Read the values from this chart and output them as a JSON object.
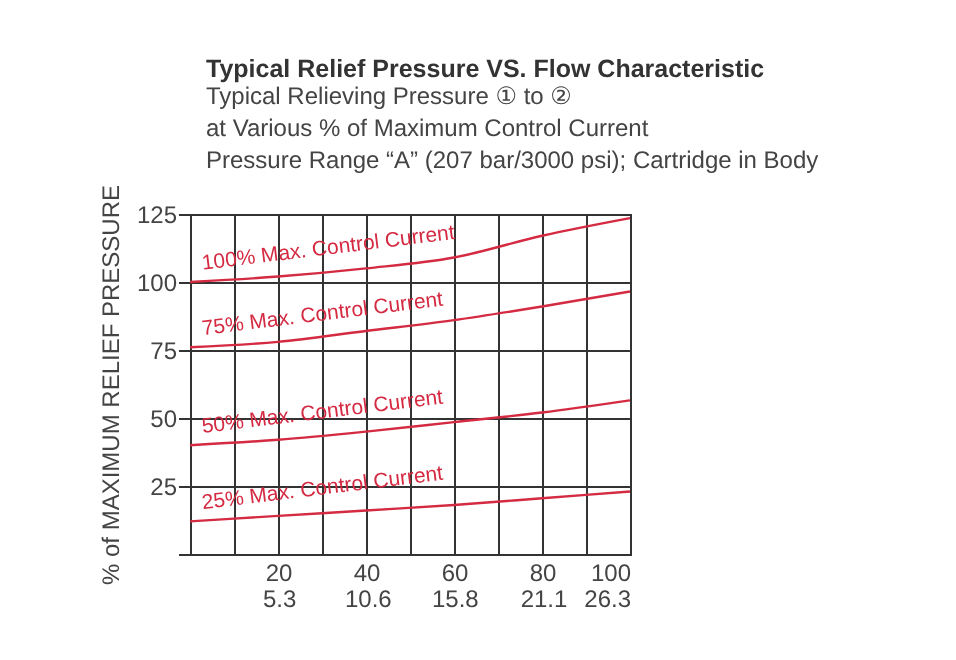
{
  "chart_data": {
    "type": "line",
    "title": "Typical Relief Pressure VS. Flow Characteristic",
    "subtitle": "Typical Relieving Pressure ① to ②\nat Various % of Maximum Control Current\nPressure Range “A” (207 bar/3000 psi); Cartridge in Body",
    "ylabel": "% of MAXIMUM RELIEF PRESSURE",
    "x": [
      0,
      20,
      40,
      60,
      80,
      100
    ],
    "series": [
      {
        "name": "100% Max. Control Current",
        "color": "#d42a42",
        "values": [
          100,
          102,
          105,
          109,
          117,
          123.5
        ]
      },
      {
        "name": "75% Max. Control Current",
        "color": "#d42a42",
        "values": [
          76,
          78,
          82,
          86,
          91,
          96.5
        ]
      },
      {
        "name": "50% Max. Control Current",
        "color": "#d42a42",
        "values": [
          40,
          42,
          45,
          48.5,
          52,
          56.5
        ]
      },
      {
        "name": "25% Max. Control Current",
        "color": "#d42a42",
        "values": [
          12,
          14,
          16,
          18,
          20.5,
          23
        ]
      }
    ],
    "xlim": [
      0,
      100
    ],
    "xticks": [
      {
        "value": 0,
        "label": null
      },
      {
        "value": 10,
        "label": null
      },
      20,
      {
        "value": 30,
        "label": null
      },
      40,
      {
        "value": 50,
        "label": null
      },
      60,
      {
        "value": 70,
        "label": null
      },
      80,
      {
        "value": 90,
        "label": null
      },
      100
    ],
    "x2lim": [
      0,
      26.3
    ],
    "x2ticks": [
      5.3,
      10.6,
      15.8,
      21.1,
      26.3
    ],
    "ylim": [
      0,
      125
    ],
    "yticks": [
      {
        "value": 0,
        "label": null
      },
      25,
      50,
      75,
      100,
      125
    ],
    "grid": true,
    "legend": false,
    "marker": "none",
    "line_style": "solid"
  }
}
